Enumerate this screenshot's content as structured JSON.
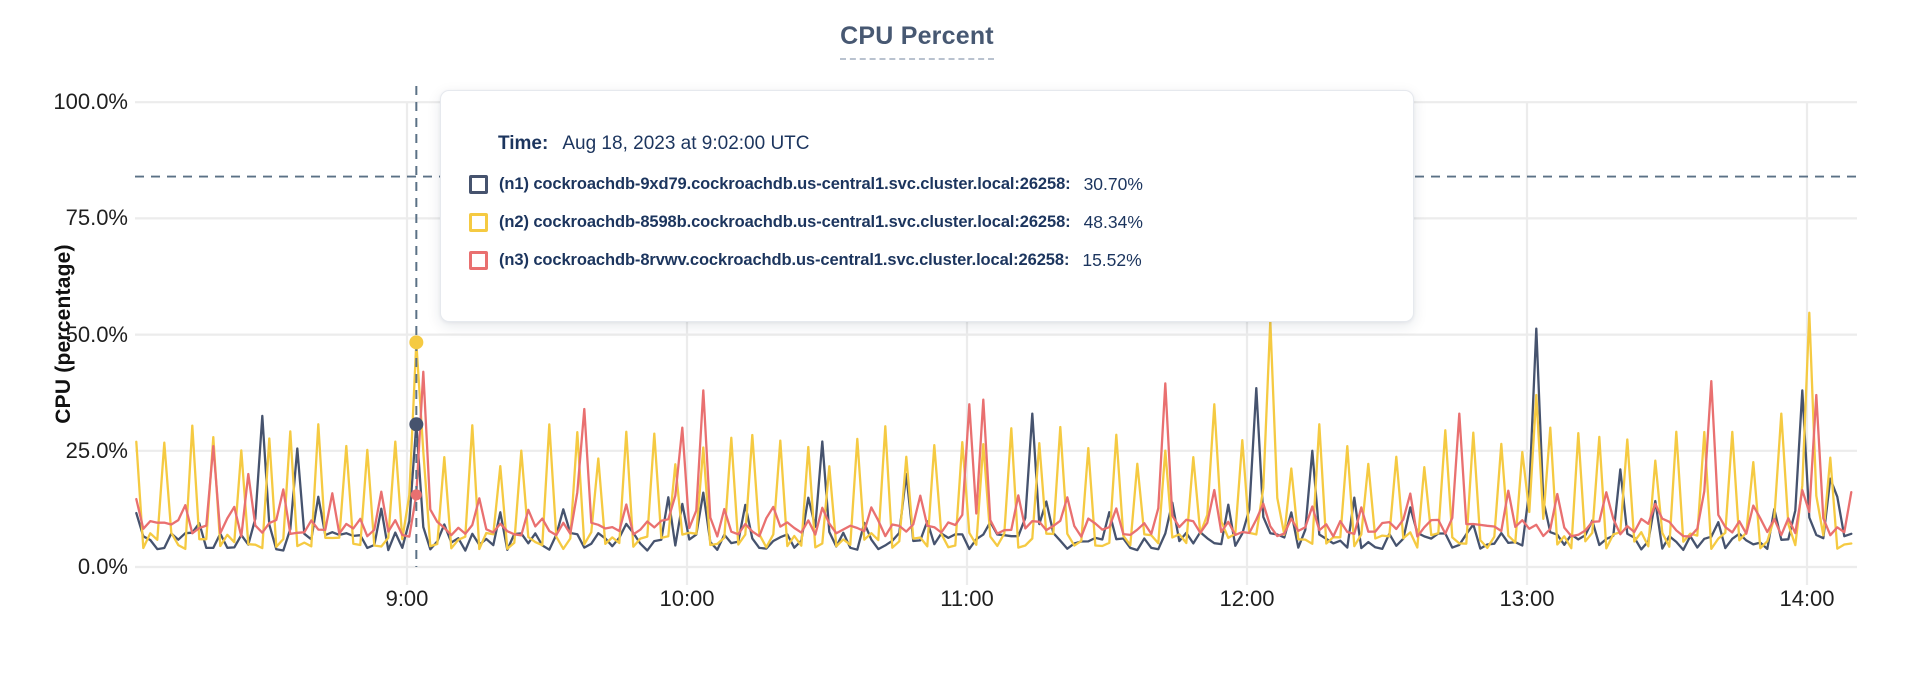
{
  "page": {
    "background": "#ffffff"
  },
  "chart": {
    "title": "CPU Percent",
    "title_color": "#475872",
    "y_axis": {
      "label": "CPU (percentage)",
      "ticks": [
        {
          "label": "100.0%",
          "value": 100
        },
        {
          "label": "75.0%",
          "value": 75
        },
        {
          "label": "50.0%",
          "value": 50
        },
        {
          "label": "25.0%",
          "value": 25
        },
        {
          "label": "0.0%",
          "value": 0
        }
      ]
    },
    "x_axis": {
      "ticks": [
        {
          "label": "9:00",
          "minute": 540
        },
        {
          "label": "10:00",
          "minute": 600
        },
        {
          "label": "11:00",
          "minute": 660
        },
        {
          "label": "12:00",
          "minute": 720
        },
        {
          "label": "13:00",
          "minute": 780
        },
        {
          "label": "14:00",
          "minute": 840
        }
      ]
    },
    "grid_color": "#ececec",
    "dashed_line_color": "#5b7186"
  },
  "tooltip": {
    "time_label": "Time:",
    "time_value": "Aug 18, 2023 at 9:02:00 UTC",
    "rows": [
      {
        "name": "(n1) cockroachdb-9xd79.cockroachdb.us-central1.svc.cluster.local:26258:",
        "value": "30.70%",
        "color": "#46536e"
      },
      {
        "name": "(n2) cockroachdb-8598b.cockroachdb.us-central1.svc.cluster.local:26258:",
        "value": "48.34%",
        "color": "#f5ca42"
      },
      {
        "name": "(n3) cockroachdb-8rvwv.cockroachdb.us-central1.svc.cluster.local:26258:",
        "value": "15.52%",
        "color": "#e97070"
      }
    ]
  },
  "chart_data": {
    "type": "line",
    "title": "CPU Percent",
    "xlabel": "",
    "ylabel": "CPU (percentage)",
    "ylim": [
      0,
      100
    ],
    "grid": true,
    "legend_position": "tooltip-overlay",
    "x_tick_labels": [
      "9:00",
      "10:00",
      "11:00",
      "12:00",
      "13:00",
      "14:00"
    ],
    "y_tick_labels": [
      "0.0%",
      "25.0%",
      "50.0%",
      "75.0%",
      "100.0%"
    ],
    "x_range_minutes": [
      482,
      849.5
    ],
    "sample_step_minutes": 1.5,
    "threshold_dashed_line_pct": 84,
    "hover": {
      "time_minute": 542,
      "time_label": "Aug 18, 2023 at 9:02:00 UTC",
      "crosshair": true
    },
    "series": [
      {
        "id": "n1",
        "name": "(n1) cockroachdb-9xd79.cockroachdb.us-central1.svc.cluster.local:26258:",
        "color": "#46536e",
        "hover_pct": 30.7,
        "hover_value": "30.70%",
        "seed": 11,
        "base_range": [
          3.5,
          7.5
        ],
        "bump": {
          "period_min": 13,
          "range": [
            9,
            16
          ]
        },
        "spikes_min_pct": [
          [
            509,
            32.5
          ],
          [
            516.5,
            25.5
          ],
          [
            542,
            30.7
          ],
          [
            596,
            15
          ],
          [
            603.5,
            16
          ],
          [
            629,
            27
          ],
          [
            647,
            20
          ],
          [
            674.5,
            33
          ],
          [
            722,
            38.5
          ],
          [
            734,
            25
          ],
          [
            782,
            51.3
          ],
          [
            800,
            21
          ],
          [
            839,
            38
          ],
          [
            845,
            19
          ]
        ]
      },
      {
        "id": "n2",
        "name": "(n2) cockroachdb-8598b.cockroachdb.us-central1.svc.cluster.local:26258:",
        "color": "#f5ca42",
        "hover_pct": 48.34,
        "hover_value": "48.34%",
        "seed": 23,
        "base_range": [
          3.8,
          7.5
        ],
        "bump": {
          "period_min": 5.5,
          "range": [
            21,
            31
          ]
        },
        "spikes_min_pct": [
          [
            542,
            48.34
          ],
          [
            713,
            35
          ],
          [
            724.5,
            53
          ],
          [
            782.5,
            37
          ],
          [
            835,
            33
          ],
          [
            841,
            54.7
          ]
        ]
      },
      {
        "id": "n3",
        "name": "(n3) cockroachdb-8rvwv.cockroachdb.us-central1.svc.cluster.local:26258:",
        "color": "#e97070",
        "hover_pct": 15.52,
        "hover_value": "15.52%",
        "seed": 37,
        "base_range": [
          6.5,
          10.5
        ],
        "bump": {
          "period_min": 10.5,
          "range": [
            12,
            17
          ]
        },
        "spikes_min_pct": [
          [
            499,
            26
          ],
          [
            506,
            20
          ],
          [
            542,
            15.52
          ],
          [
            543.5,
            42
          ],
          [
            578,
            34
          ],
          [
            599,
            30
          ],
          [
            603.5,
            38
          ],
          [
            660.5,
            35
          ],
          [
            663.5,
            36
          ],
          [
            703,
            39.5
          ],
          [
            765,
            33
          ],
          [
            820,
            40
          ],
          [
            842,
            37
          ]
        ]
      }
    ]
  }
}
